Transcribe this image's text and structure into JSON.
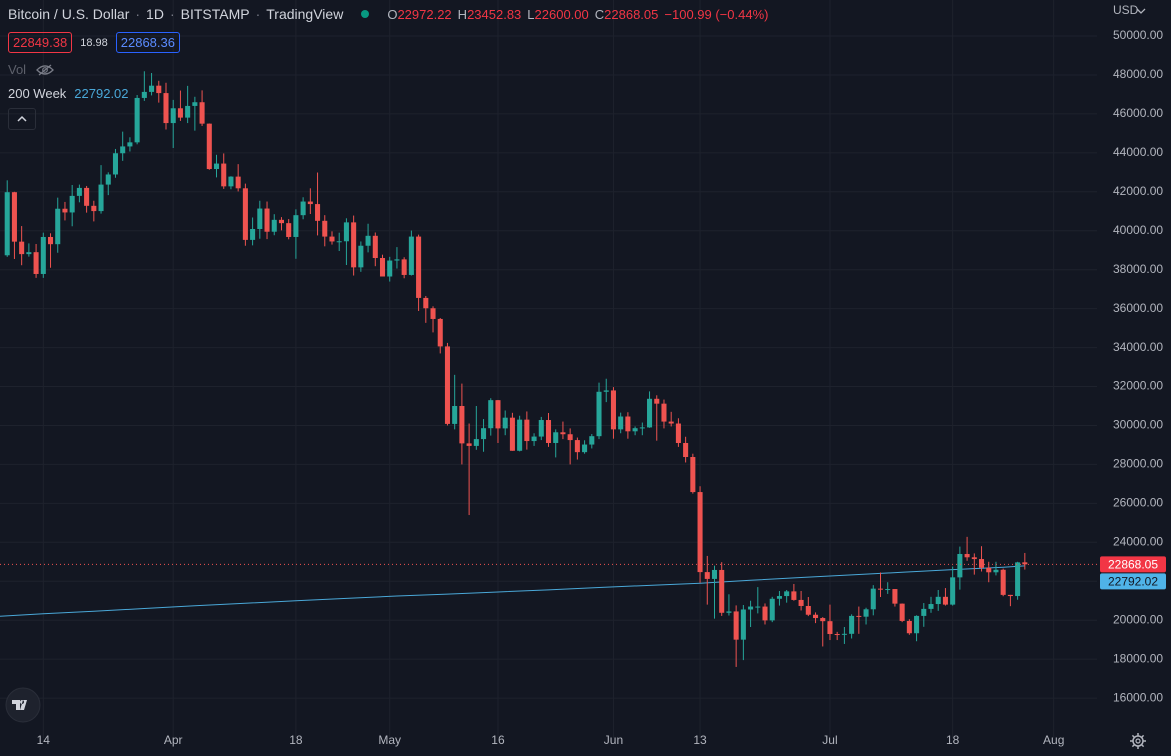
{
  "header": {
    "symbol": "Bitcoin / U.S. Dollar",
    "interval": "1D",
    "exchange": "BITSTAMP",
    "source": "TradingView",
    "ohlc": [
      {
        "key": "O",
        "value": "22972.22"
      },
      {
        "key": "H",
        "value": "23452.83"
      },
      {
        "key": "L",
        "value": "22600.00"
      },
      {
        "key": "C",
        "value": "22868.05"
      }
    ],
    "change": "−100.99 (−0.44%)",
    "bid": "22849.38",
    "spread": "18.98",
    "ask": "22868.36",
    "volume_label": "Vol",
    "currency": "USD"
  },
  "chart_data": {
    "type": "candlestick",
    "up_color": "#26a69a",
    "down_color": "#ef5350",
    "grid": true,
    "xlim": [
      "03-08",
      "08-07"
    ],
    "xticks": [
      {
        "value": "03-14",
        "label": "14"
      },
      {
        "value": "04-01",
        "label": "Apr"
      },
      {
        "value": "04-18",
        "label": "18"
      },
      {
        "value": "05-01",
        "label": "May"
      },
      {
        "value": "05-16",
        "label": "16"
      },
      {
        "value": "06-01",
        "label": "Jun"
      },
      {
        "value": "06-13",
        "label": "13"
      },
      {
        "value": "07-01",
        "label": "Jul"
      },
      {
        "value": "07-18",
        "label": "18"
      },
      {
        "value": "08-01",
        "label": "Aug"
      }
    ],
    "ylim": [
      13950,
      51850
    ],
    "yticks": [
      {
        "value": 16000,
        "label": "16000.00"
      },
      {
        "value": 18000,
        "label": "18000.00"
      },
      {
        "value": 20000,
        "label": "20000.00"
      },
      {
        "value": 22000,
        "label": "22000.00"
      },
      {
        "value": 24000,
        "label": "24000.00"
      },
      {
        "value": 26000,
        "label": "26000.00"
      },
      {
        "value": 28000,
        "label": "28000.00"
      },
      {
        "value": 30000,
        "label": "30000.00"
      },
      {
        "value": 32000,
        "label": "32000.00"
      },
      {
        "value": 34000,
        "label": "34000.00"
      },
      {
        "value": 36000,
        "label": "36000.00"
      },
      {
        "value": 38000,
        "label": "38000.00"
      },
      {
        "value": 40000,
        "label": "40000.00"
      },
      {
        "value": 42000,
        "label": "42000.00"
      },
      {
        "value": 44000,
        "label": "44000.00"
      },
      {
        "value": 46000,
        "label": "46000.00"
      },
      {
        "value": 48000,
        "label": "48000.00"
      },
      {
        "value": 50000,
        "label": "50000.00"
      }
    ],
    "x": [
      "03-09",
      "03-10",
      "03-11",
      "03-12",
      "03-13",
      "03-14",
      "03-15",
      "03-16",
      "03-17",
      "03-18",
      "03-19",
      "03-20",
      "03-21",
      "03-22",
      "03-23",
      "03-24",
      "03-25",
      "03-26",
      "03-27",
      "03-28",
      "03-29",
      "03-30",
      "03-31",
      "04-01",
      "04-02",
      "04-03",
      "04-04",
      "04-05",
      "04-06",
      "04-07",
      "04-08",
      "04-09",
      "04-10",
      "04-11",
      "04-12",
      "04-13",
      "04-14",
      "04-15",
      "04-16",
      "04-17",
      "04-18",
      "04-19",
      "04-20",
      "04-21",
      "04-22",
      "04-23",
      "04-24",
      "04-25",
      "04-26",
      "04-27",
      "04-28",
      "04-29",
      "04-30",
      "05-01",
      "05-02",
      "05-03",
      "05-04",
      "05-05",
      "05-06",
      "05-07",
      "05-08",
      "05-09",
      "05-10",
      "05-11",
      "05-12",
      "05-13",
      "05-14",
      "05-15",
      "05-16",
      "05-17",
      "05-18",
      "05-19",
      "05-20",
      "05-21",
      "05-22",
      "05-23",
      "05-24",
      "05-25",
      "05-26",
      "05-27",
      "05-28",
      "05-29",
      "05-30",
      "05-31",
      "06-01",
      "06-02",
      "06-03",
      "06-04",
      "06-05",
      "06-06",
      "06-07",
      "06-08",
      "06-09",
      "06-10",
      "06-11",
      "06-12",
      "06-13",
      "06-14",
      "06-15",
      "06-16",
      "06-17",
      "06-18",
      "06-19",
      "06-20",
      "06-21",
      "06-22",
      "06-23",
      "06-24",
      "06-25",
      "06-26",
      "06-27",
      "06-28",
      "06-29",
      "06-30",
      "07-01",
      "07-02",
      "07-03",
      "07-04",
      "07-05",
      "07-06",
      "07-07",
      "07-08",
      "07-09",
      "07-10",
      "07-11",
      "07-12",
      "07-13",
      "07-14",
      "07-15",
      "07-16",
      "07-17",
      "07-18",
      "07-19",
      "07-20",
      "07-21",
      "07-22",
      "07-23",
      "07-24",
      "07-25",
      "07-26",
      "07-27",
      "07-28"
    ],
    "open": [
      38740,
      41980,
      39440,
      38800,
      38900,
      37780,
      39680,
      39310,
      41130,
      40940,
      41790,
      42200,
      41280,
      41010,
      42370,
      42890,
      43980,
      44330,
      44540,
      46820,
      47130,
      47450,
      47070,
      45530,
      46290,
      45810,
      46410,
      46600,
      45500,
      43170,
      43450,
      42280,
      42780,
      42180,
      39530,
      40090,
      41140,
      39950,
      40560,
      40390,
      39680,
      40800,
      41500,
      41370,
      40510,
      39700,
      39450,
      39460,
      40430,
      38120,
      39230,
      39740,
      38600,
      37650,
      38470,
      38530,
      37730,
      39700,
      36550,
      36020,
      35470,
      34060,
      30080,
      31000,
      29080,
      28950,
      29300,
      29860,
      31300,
      29850,
      30400,
      28700,
      30300,
      29200,
      29430,
      30280,
      29100,
      29650,
      29550,
      29250,
      28630,
      29020,
      29450,
      31730,
      31800,
      29800,
      30460,
      29700,
      29860,
      29900,
      31370,
      31120,
      30200,
      30100,
      29100,
      28380,
      26580,
      22470,
      22120,
      22580,
      20380,
      20450,
      19000,
      20550,
      20700,
      20700,
      19990,
      21100,
      21240,
      21480,
      21040,
      20730,
      20280,
      20110,
      19950,
      19290,
      19260,
      19300,
      20220,
      20180,
      20560,
      21620,
      21580,
      21600,
      20850,
      19960,
      19330,
      20220,
      20580,
      20830,
      21200,
      20800,
      22200,
      23400,
      23230,
      23140,
      22690,
      22460,
      22590,
      21300,
      21240,
      22972.22
    ],
    "high": [
      42590,
      42000,
      40240,
      39350,
      39320,
      39900,
      39870,
      41700,
      41480,
      42350,
      42370,
      42300,
      41540,
      43370,
      43000,
      44200,
      45090,
      44800,
      46970,
      48190,
      48100,
      47700,
      47600,
      46720,
      47200,
      47440,
      46880,
      47210,
      45510,
      43900,
      43970,
      42800,
      43420,
      42420,
      40680,
      41540,
      41500,
      40850,
      40700,
      40600,
      41100,
      41720,
      42180,
      42990,
      40800,
      39970,
      39900,
      40640,
      40780,
      39450,
      40360,
      39910,
      38770,
      38660,
      39160,
      38640,
      40010,
      39800,
      36650,
      36120,
      35520,
      34240,
      32600,
      32150,
      30100,
      31000,
      30330,
      31400,
      31310,
      30770,
      30650,
      30500,
      30720,
      29600,
      30440,
      30640,
      29800,
      30200,
      29850,
      29380,
      29240,
      29560,
      32200,
      32400,
      31970,
      30660,
      30680,
      29950,
      30150,
      31750,
      31550,
      31330,
      30700,
      30370,
      29420,
      28550,
      26880,
      23300,
      22800,
      22980,
      21330,
      20760,
      20780,
      21000,
      21700,
      20860,
      21200,
      21500,
      21550,
      21860,
      21500,
      21190,
      20400,
      20160,
      20800,
      19400,
      19650,
      20300,
      20700,
      20640,
      21800,
      22450,
      21950,
      21600,
      20860,
      20050,
      20250,
      20880,
      21200,
      21550,
      21650,
      22750,
      23780,
      24280,
      23430,
      23800,
      23000,
      23000,
      22650,
      21300,
      23000,
      23452.83
    ],
    "low": [
      38660,
      38550,
      38230,
      38670,
      37580,
      37580,
      38100,
      38870,
      40530,
      40230,
      41460,
      40930,
      40480,
      40880,
      41830,
      42720,
      43590,
      44070,
      44440,
      46670,
      46950,
      46580,
      45200,
      44250,
      45640,
      45530,
      45140,
      45380,
      43130,
      42740,
      42150,
      42130,
      42020,
      39230,
      39250,
      39590,
      39570,
      39770,
      40020,
      39560,
      38560,
      40590,
      40860,
      39760,
      39200,
      39290,
      38960,
      38240,
      37700,
      37890,
      38890,
      38180,
      37650,
      37390,
      38060,
      37560,
      37700,
      35880,
      35270,
      34780,
      33700,
      30000,
      29800,
      28000,
      25400,
      28750,
      28650,
      29480,
      29100,
      29500,
      28700,
      28670,
      28760,
      28950,
      29250,
      28900,
      28360,
      29300,
      28000,
      28250,
      28550,
      28820,
      29300,
      31200,
      29320,
      29600,
      29320,
      29500,
      29500,
      29880,
      29220,
      29850,
      29950,
      28900,
      28100,
      26500,
      21920,
      20800,
      20080,
      20220,
      20240,
      17600,
      17950,
      19650,
      20350,
      19780,
      19900,
      20750,
      20900,
      21000,
      20500,
      20210,
      19850,
      18650,
      18980,
      18980,
      18780,
      19060,
      19300,
      19780,
      20250,
      21190,
      21350,
      20700,
      19900,
      19250,
      18920,
      19660,
      20380,
      20480,
      20750,
      20750,
      21570,
      23050,
      22340,
      22500,
      21950,
      22300,
      21230,
      20720,
      21050,
      22600
    ],
    "close": [
      41980,
      39440,
      38800,
      38900,
      37780,
      39680,
      39310,
      41130,
      40940,
      41790,
      42200,
      41280,
      41010,
      42370,
      42890,
      43980,
      44330,
      44540,
      46820,
      47130,
      47450,
      47070,
      45530,
      46290,
      45810,
      46410,
      46600,
      45500,
      43170,
      43450,
      42280,
      42780,
      42180,
      39530,
      40090,
      41140,
      39950,
      40560,
      40390,
      39680,
      40800,
      41500,
      41370,
      40510,
      39700,
      39450,
      39460,
      40430,
      38120,
      39230,
      39740,
      38600,
      37650,
      38470,
      38530,
      37730,
      39700,
      36550,
      36020,
      35470,
      34060,
      30080,
      31000,
      29080,
      28950,
      29300,
      29860,
      31300,
      29850,
      30400,
      28700,
      30300,
      29200,
      29430,
      30280,
      29100,
      29650,
      29550,
      29250,
      28630,
      29020,
      29450,
      31730,
      31800,
      29800,
      30460,
      29700,
      29860,
      29900,
      31370,
      31120,
      30200,
      30100,
      29100,
      28380,
      26580,
      22470,
      22120,
      22580,
      20380,
      20450,
      19000,
      20550,
      20700,
      20700,
      19990,
      21100,
      21240,
      21480,
      21040,
      20730,
      20280,
      20110,
      19950,
      19290,
      19260,
      19300,
      20220,
      20180,
      20560,
      21620,
      21580,
      21600,
      20850,
      19960,
      19330,
      20220,
      20580,
      20830,
      21200,
      20800,
      22200,
      23400,
      23230,
      23140,
      22690,
      22460,
      22590,
      21300,
      21240,
      22970,
      22868.05
    ],
    "ma": {
      "name": "200 Week",
      "color": "#4aa8d8",
      "x": [
        "03-08",
        "03-14",
        "03-21",
        "03-28",
        "04-04",
        "04-11",
        "04-18",
        "04-25",
        "05-02",
        "05-09",
        "05-16",
        "05-23",
        "05-30",
        "06-06",
        "06-13",
        "06-20",
        "06-27",
        "07-04",
        "07-11",
        "07-18",
        "07-25",
        "07-28"
      ],
      "values": [
        20200,
        20330,
        20460,
        20600,
        20740,
        20870,
        21000,
        21120,
        21240,
        21340,
        21450,
        21560,
        21680,
        21790,
        21900,
        22050,
        22190,
        22330,
        22460,
        22600,
        22720,
        22792.02
      ]
    }
  }
}
